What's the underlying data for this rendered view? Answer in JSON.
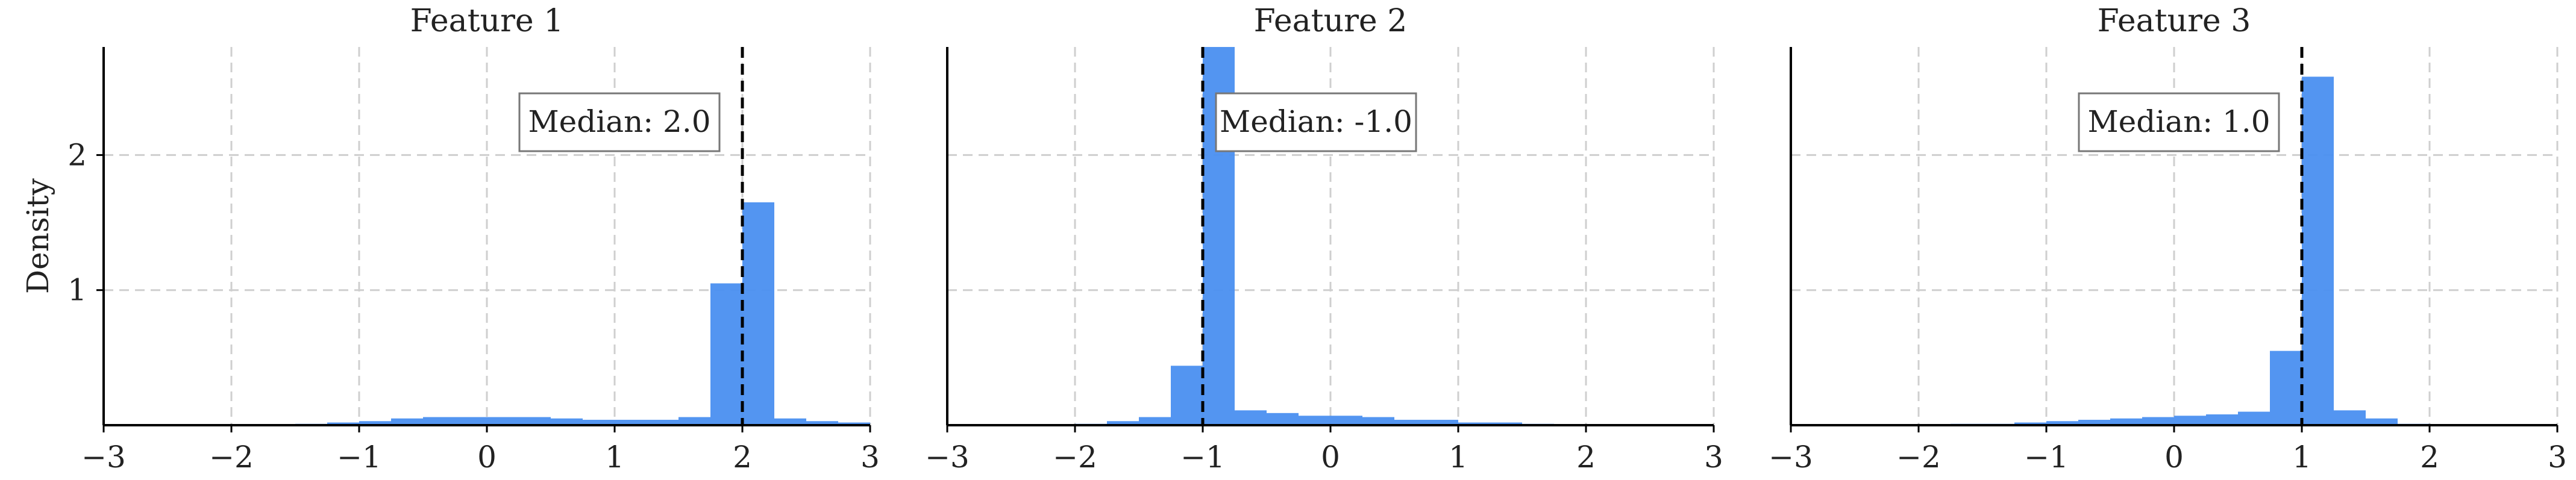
{
  "chart_data": [
    {
      "type": "bar",
      "title": "Feature 1",
      "ylabel": "Density",
      "xlim": [
        -3,
        3
      ],
      "ylim": [
        0,
        2.8
      ],
      "xticks": [
        "−3",
        "−2",
        "−1",
        "0",
        "1",
        "2",
        "3"
      ],
      "yticks": [
        "1",
        "2"
      ],
      "bin_width": 0.25,
      "bins_start": [
        -1.5,
        -1.25,
        -1.0,
        -0.75,
        -0.5,
        -0.25,
        0.0,
        0.25,
        0.5,
        0.75,
        1.0,
        1.25,
        1.5,
        1.75,
        2.0,
        2.25,
        2.5,
        2.75
      ],
      "values": [
        0.01,
        0.02,
        0.03,
        0.05,
        0.06,
        0.06,
        0.06,
        0.06,
        0.05,
        0.04,
        0.04,
        0.04,
        0.06,
        1.05,
        1.65,
        0.05,
        0.03,
        0.02
      ],
      "median": 2.0,
      "median_label": "Median: 2.0",
      "color": "#4a8ff0",
      "grid": true
    },
    {
      "type": "bar",
      "title": "Feature 2",
      "ylabel": "",
      "xlim": [
        -3,
        3
      ],
      "ylim": [
        0,
        2.8
      ],
      "xticks": [
        "−3",
        "−2",
        "−1",
        "0",
        "1",
        "2",
        "3"
      ],
      "yticks": [],
      "bin_width": 0.25,
      "bins_start": [
        -2.0,
        -1.75,
        -1.5,
        -1.25,
        -1.0,
        -0.75,
        -0.5,
        -0.25,
        0.0,
        0.25,
        0.5,
        0.75,
        1.0,
        1.25,
        1.5
      ],
      "values": [
        0.01,
        0.03,
        0.06,
        0.44,
        2.9,
        0.11,
        0.09,
        0.07,
        0.07,
        0.06,
        0.04,
        0.04,
        0.02,
        0.02,
        0.01
      ],
      "median": -1.0,
      "median_label": "Median: -1.0",
      "color": "#4a8ff0",
      "grid": true
    },
    {
      "type": "bar",
      "title": "Feature 3",
      "ylabel": "",
      "xlim": [
        -3,
        3
      ],
      "ylim": [
        0,
        2.8
      ],
      "xticks": [
        "−3",
        "−2",
        "−1",
        "0",
        "1",
        "2",
        "3"
      ],
      "yticks": [],
      "bin_width": 0.25,
      "bins_start": [
        -1.75,
        -1.5,
        -1.25,
        -1.0,
        -0.75,
        -0.5,
        -0.25,
        0.0,
        0.25,
        0.5,
        0.75,
        1.0,
        1.25,
        1.5,
        1.75
      ],
      "values": [
        0.01,
        0.01,
        0.02,
        0.03,
        0.04,
        0.05,
        0.06,
        0.07,
        0.08,
        0.1,
        0.55,
        2.58,
        0.11,
        0.05,
        0.01
      ],
      "median": 1.0,
      "median_label": "Median: 1.0",
      "color": "#4a8ff0",
      "grid": true
    }
  ]
}
